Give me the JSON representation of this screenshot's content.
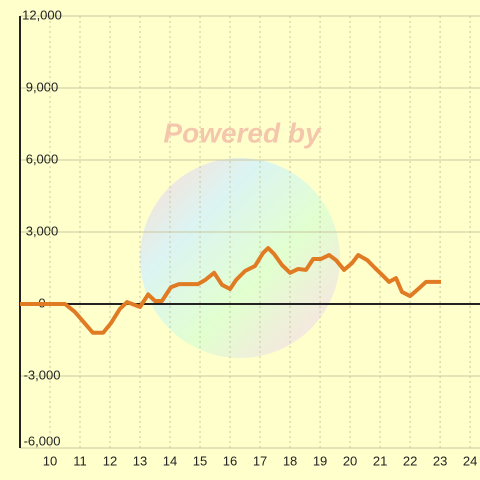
{
  "chart_data": {
    "type": "line",
    "watermark": "Powered by",
    "x": [
      9.0,
      10.5,
      10.83,
      11.43,
      11.77,
      12.03,
      12.33,
      12.57,
      13.0,
      13.27,
      13.5,
      13.73,
      14.03,
      14.3,
      14.93,
      15.17,
      15.47,
      15.73,
      16.0,
      16.2,
      16.5,
      16.83,
      17.1,
      17.27,
      17.47,
      17.73,
      18.0,
      18.27,
      18.53,
      18.77,
      19.03,
      19.3,
      19.53,
      19.8,
      20.07,
      20.27,
      20.57,
      20.83,
      21.07,
      21.3,
      21.53,
      21.73,
      22.0,
      22.27,
      22.53,
      23.03
    ],
    "series": [
      {
        "color": "#e07b24",
        "values": [
          0,
          0,
          -330,
          -1200,
          -1200,
          -800,
          -200,
          80,
          -125,
          400,
          125,
          125,
          700,
          830,
          830,
          1000,
          1300,
          800,
          625,
          1000,
          1375,
          1580,
          2125,
          2330,
          2080,
          1625,
          1300,
          1460,
          1420,
          1875,
          1875,
          2040,
          1830,
          1420,
          1710,
          2040,
          1830,
          1500,
          1210,
          920,
          1080,
          500,
          330,
          625,
          920,
          920
        ]
      }
    ],
    "xlim": [
      9,
      24.33
    ],
    "xticks": [
      10,
      11,
      12,
      13,
      14,
      15,
      16,
      17,
      18,
      19,
      20,
      21,
      22,
      23,
      24
    ],
    "ylim": [
      -6000,
      12000
    ],
    "yticks": [
      {
        "value": -6000,
        "label": "-6,000"
      },
      {
        "value": -3000,
        "label": "-3,000"
      },
      0,
      {
        "value": 3000,
        "label": "3,000"
      },
      {
        "value": 6000,
        "label": "6,000"
      },
      {
        "value": 9000,
        "label": "9,000"
      },
      {
        "value": 12000,
        "label": "12,000"
      }
    ],
    "grid": true
  }
}
